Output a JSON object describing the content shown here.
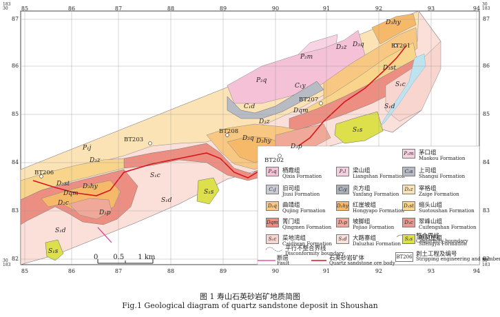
{
  "map": {
    "grid_x_labels": [
      "85",
      "86",
      "87",
      "88",
      "89",
      "90",
      "91",
      "92",
      "93",
      "94"
    ],
    "grid_y_labels": [
      "87",
      "86",
      "85",
      "84",
      "83",
      "82"
    ],
    "corner_x_prefix": "183",
    "corner_y_suffix": "30",
    "region_labels": {
      "P2m_top": "P₂m",
      "P2q_top": "P₂q",
      "D3hy_ne": "D₃hy",
      "D3q_ne": "D₃q",
      "D3z_ne": "D₃z",
      "D3st_ne": "D₃st",
      "S1c_ne": "S₁c",
      "S1d_ne": "S₁d",
      "C1y": "C₁y",
      "C1d": "C₁d",
      "D3z_mid": "D₃z",
      "D3hy_mid": "D₃hy",
      "D3q_mid": "D₃q",
      "D3p_mid": "D₃p",
      "Dqm_mid": "Dqm",
      "S1s_mid": "S₁s",
      "P1j": "P₁j",
      "D3z_w": "D₃z",
      "S1c_w": "S₁c",
      "S1d_w": "S₁d",
      "S1s_w": "S₁s",
      "D3st_w": "D₃st",
      "Dqm_w": "Dqm",
      "D3hy_w": "D₃hy",
      "D2c_w": "D₂c",
      "D3p_w": "D₃p",
      "S1d_sw": "S₁d",
      "S1s_sw": "S₁s"
    },
    "sections": [
      "BT201",
      "BT207",
      "BT208",
      "BT203",
      "BT202",
      "BT206"
    ]
  },
  "legend": [
    {
      "code": "P₂m",
      "zh": "茅口组",
      "en": "Maokou Formation",
      "color": "#f7d3e3"
    },
    {
      "code": "P₂q",
      "zh": "栖霞组",
      "en": "Qixia Formation",
      "color": "#f4c1d6"
    },
    {
      "code": "P₁l",
      "zh": "梁山组",
      "en": "Liangshan Formation",
      "color": "#f6d0e0"
    },
    {
      "code": "C₂s",
      "zh": "上司组",
      "en": "Shangsi Formation",
      "color": "#b7bcc4"
    },
    {
      "code": "C₁j",
      "zh": "旧司组",
      "en": "Jiusi Formation",
      "color": "#c9ccd4"
    },
    {
      "code": "C₁y",
      "zh": "炎方组",
      "en": "Yanfang Formation",
      "color": "#a9b0b8"
    },
    {
      "code": "D₃z",
      "zh": "宰格组",
      "en": "Zaige Formation",
      "color": "#fce3b6"
    },
    {
      "code": "D₂q",
      "zh": "曲靖组",
      "en": "Qujing Formation",
      "color": "#f8c781"
    },
    {
      "code": "D₂hy",
      "zh": "红崖坡组",
      "en": "Hongyapo Formation",
      "color": "#f5b969"
    },
    {
      "code": "D₁st",
      "zh": "缩头山组",
      "en": "Suotoushan Formation",
      "color": "#f8d58a"
    },
    {
      "code": "Dqm",
      "zh": "箐门组",
      "en": "Qingmen Formation",
      "color": "#ec8f82"
    },
    {
      "code": "D₁p",
      "zh": "坡脚组",
      "en": "Pojiao Formation",
      "color": "#f0a998"
    },
    {
      "code": "D₁c",
      "zh": "翠峰山组",
      "en": "Cuifengshan Formation",
      "color": "#e99a90"
    },
    {
      "code": "S₁c",
      "zh": "菜地湾组",
      "en": "Caidiwan Formation",
      "color": "#f9d5cf"
    },
    {
      "code": "S₁d",
      "zh": "大路寨组",
      "en": "Daluzhai Formation",
      "color": "#fbe0da"
    },
    {
      "code": "S₁s",
      "zh": "嘶风崖组",
      "en": "Sifengya Formation",
      "color": "#dde04a"
    }
  ],
  "legend_lines": [
    {
      "zh": "整合界线",
      "en": "Conformity boundary"
    },
    {
      "zh": "平行不整合界线",
      "en": "Disconformity boundary"
    },
    {
      "zh": "断层",
      "en": "Fault"
    },
    {
      "zh": "石英砂岩矿体",
      "en": "Quartz sandstone ore body"
    },
    {
      "zh": "剥土工程及编号",
      "en": "Stripping engineering and number",
      "code": "BT206"
    }
  ],
  "scale": {
    "zero": "0",
    "half": "0.5",
    "one": "1",
    "unit": "km"
  },
  "caption": {
    "zh": "图 1 寿山石英砂岩矿地质简图",
    "en": "Fig.1  Geological diagram of quartz sandstone deposit in Shoushan"
  },
  "colors": {
    "ore_body": "#d8141b",
    "fault": "#e0308f",
    "river": "#bfe3ee",
    "grid": "#9a9a9a"
  }
}
